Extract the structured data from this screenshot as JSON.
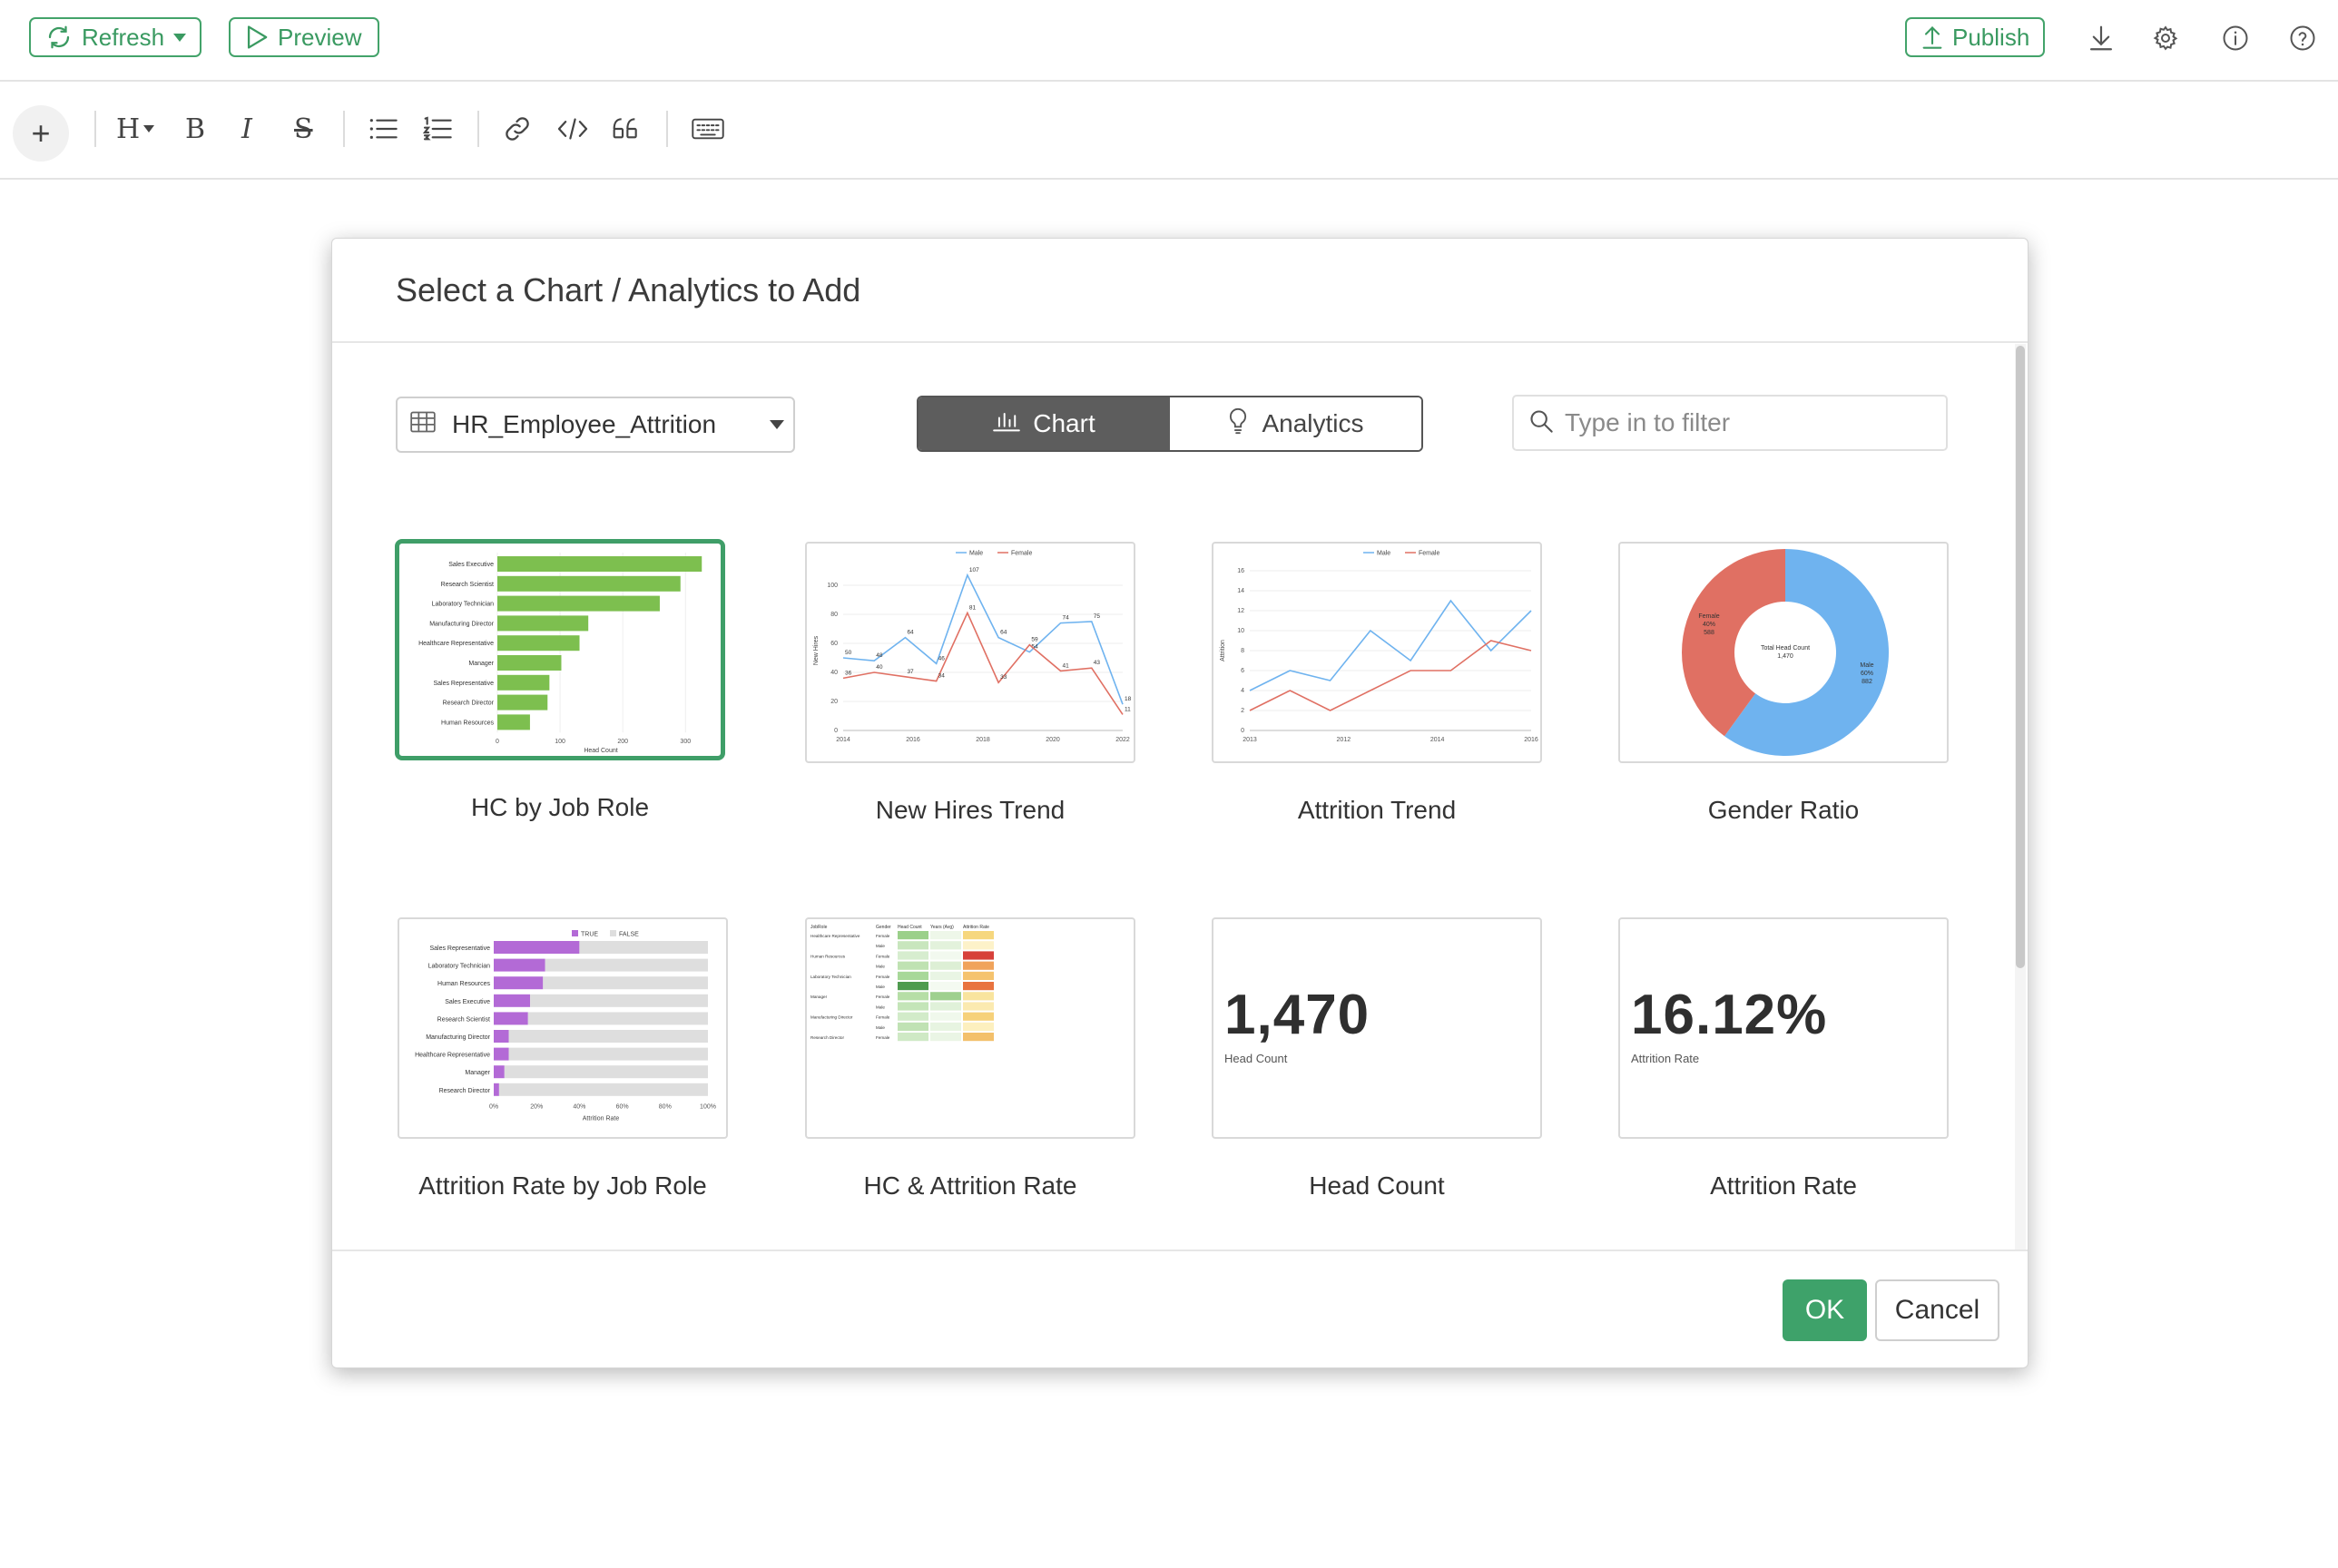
{
  "topbar": {
    "refresh_label": "Refresh",
    "preview_label": "Preview",
    "publish_label": "Publish",
    "icons": [
      "download-icon",
      "gear-icon",
      "info-icon",
      "help-icon"
    ]
  },
  "editor_toolbar": {
    "heading_label": "H",
    "bold_label": "B",
    "italic_label": "I",
    "strike_label": "S",
    "icons": [
      "plus-icon",
      "heading-icon",
      "bold-icon",
      "italic-icon",
      "strikethrough-icon",
      "bullet-list-icon",
      "numbered-list-icon",
      "link-icon",
      "code-icon",
      "quote-icon",
      "keyboard-icon"
    ]
  },
  "dialog": {
    "title": "Select a Chart / Analytics to Add",
    "dataset": "HR_Employee_Attrition",
    "tabs": {
      "chart": "Chart",
      "analytics": "Analytics",
      "active": "Chart"
    },
    "filter_placeholder": "Type in to filter",
    "ok_label": "OK",
    "cancel_label": "Cancel",
    "colors": {
      "accent": "#3f9e68",
      "bar_green": "#7dbf4f",
      "bar_purple": "#b36ad6",
      "male_blue": "#6fb3ef",
      "female_red": "#e07063"
    },
    "cards": [
      {
        "label": "HC by Job Role",
        "selected": true,
        "chart_data": {
          "type": "bar",
          "categories": [
            "Sales Executive",
            "Research Scientist",
            "Laboratory Technician",
            "Manufacturing Director",
            "Healthcare Representative",
            "Manager",
            "Sales Representative",
            "Research Director",
            "Human Resources"
          ],
          "values": [
            326,
            292,
            259,
            145,
            131,
            102,
            83,
            80,
            52
          ],
          "xlabel": "Head Count",
          "ticks": [
            "0",
            "100",
            "200",
            "300"
          ],
          "xlim": [
            0,
            330
          ]
        }
      },
      {
        "label": "New Hires Trend",
        "selected": false,
        "chart_data": {
          "type": "line",
          "x": [
            2014,
            2015,
            2016,
            2017,
            2018,
            2019,
            2020,
            2021,
            2022,
            2023
          ],
          "series": [
            {
              "name": "Male",
              "values": [
                50,
                48,
                64,
                46,
                107,
                64,
                54,
                74,
                75,
                18
              ]
            },
            {
              "name": "Female",
              "values": [
                36,
                40,
                37,
                34,
                81,
                33,
                59,
                41,
                43,
                11
              ]
            }
          ],
          "ylabel": "New Hires",
          "ticks_x": [
            "2014",
            "2016",
            "2018",
            "2020",
            "2022"
          ],
          "ticks_y": [
            "0",
            "20",
            "40",
            "60",
            "80",
            "100"
          ],
          "ylim": [
            0,
            110
          ]
        }
      },
      {
        "label": "Attrition Trend",
        "selected": false,
        "chart_data": {
          "type": "line",
          "x": [
            2012,
            2013,
            2014,
            2015,
            2016,
            2017,
            2018,
            2019
          ],
          "series": [
            {
              "name": "Male",
              "values": [
                4,
                6,
                5,
                10,
                7,
                13,
                8,
                12
              ]
            },
            {
              "name": "Female",
              "values": [
                2,
                4,
                2,
                4,
                6,
                6,
                9,
                8
              ]
            }
          ],
          "ylabel": "Attrition",
          "ticks_x": [
            "2013",
            "2012",
            "2014",
            "2016"
          ],
          "ticks_y": [
            "0",
            "2",
            "4",
            "6",
            "8",
            "10",
            "12",
            "14",
            "16"
          ],
          "ylim": [
            0,
            16
          ]
        }
      },
      {
        "label": "Gender Ratio",
        "selected": false,
        "chart_data": {
          "type": "pie",
          "slices": [
            {
              "name": "Male",
              "percent": "60%",
              "value": 882,
              "color": "#6fb3ef"
            },
            {
              "name": "Female",
              "percent": "40%",
              "value": 588,
              "color": "#e07063"
            }
          ],
          "center_label": "Total Head Count",
          "center_value": "1,470"
        }
      },
      {
        "label": "Attrition Rate by Job Role",
        "selected": false,
        "chart_data": {
          "type": "bar",
          "stacked": true,
          "categories": [
            "Sales Representative",
            "Laboratory Technician",
            "Human Resources",
            "Sales Executive",
            "Research Scientist",
            "Manufacturing Director",
            "Healthcare Representative",
            "Manager",
            "Research Director"
          ],
          "series": [
            {
              "name": "TRUE",
              "values": [
                40,
                24,
                23,
                17,
                16,
                7,
                7,
                5,
                2.5
              ]
            },
            {
              "name": "FALSE",
              "values": [
                60,
                76,
                77,
                83,
                84,
                93,
                93,
                95,
                97.5
              ]
            }
          ],
          "xlabel": "Attrition Rate",
          "ticks": [
            "0%",
            "20%",
            "40%",
            "60%",
            "80%",
            "100%"
          ],
          "xlim": [
            0,
            100
          ]
        }
      },
      {
        "label": "HC & Attrition Rate",
        "selected": false,
        "chart_data": {
          "type": "table",
          "columns": [
            "JobRole",
            "Gender",
            "Head Count",
            "Years (Avg)",
            "Attrition Rate"
          ],
          "rows": [
            [
              "Healthcare Representative",
              "Female",
              "",
              "",
              ""
            ],
            [
              "",
              "Male",
              "",
              "",
              ""
            ],
            [
              "Human Resources",
              "Female",
              "",
              "",
              ""
            ],
            [
              "",
              "Male",
              "",
              "",
              ""
            ],
            [
              "Laboratory Technician",
              "Female",
              "",
              "",
              ""
            ],
            [
              "",
              "Male",
              "",
              "",
              ""
            ],
            [
              "Manager",
              "Female",
              "",
              "",
              ""
            ],
            [
              "",
              "Male",
              "",
              "",
              ""
            ],
            [
              "Manufacturing Director",
              "Female",
              "",
              "",
              ""
            ],
            [
              "",
              "Male",
              "",
              "",
              ""
            ],
            [
              "Research Director",
              "Female",
              "",
              "",
              ""
            ]
          ]
        }
      },
      {
        "label": "Head Count",
        "selected": false,
        "kpi_value": "1,470",
        "kpi_label": "Head Count"
      },
      {
        "label": "Attrition Rate",
        "selected": false,
        "kpi_value": "16.12%",
        "kpi_label": "Attrition Rate"
      }
    ]
  }
}
